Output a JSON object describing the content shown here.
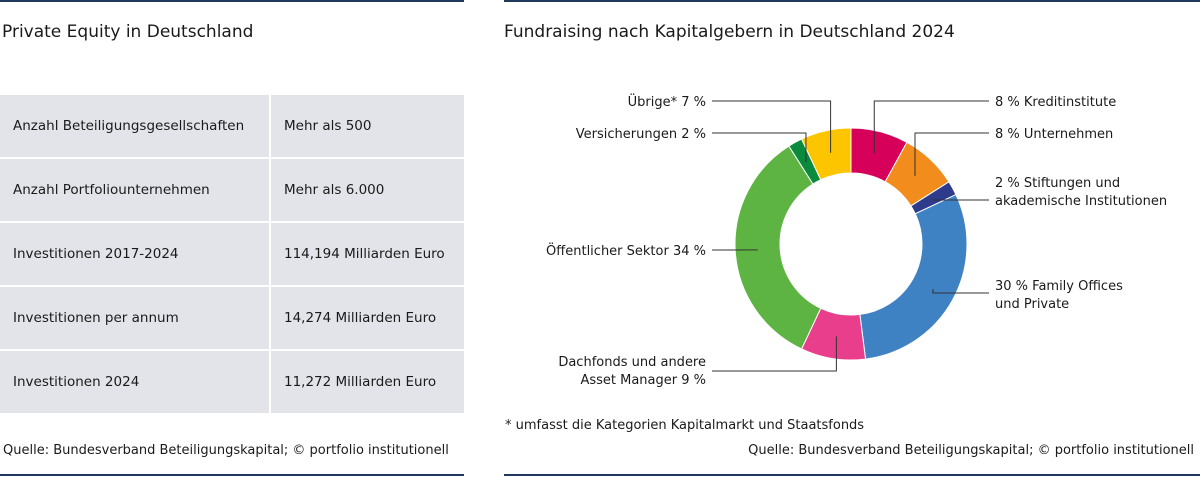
{
  "left": {
    "title": "Private Equity in Deutschland",
    "rows": [
      {
        "label": "Anzahl Beteiligungsgesellschaften",
        "value": "Mehr als 500"
      },
      {
        "label": "Anzahl Portfoliounternehmen",
        "value": "Mehr als 6.000"
      },
      {
        "label": "Investitionen 2017-2024",
        "value": "114,194 Milliarden Euro"
      },
      {
        "label": "Investitionen per annum",
        "value": "14,274 Milliarden Euro"
      },
      {
        "label": "Investitionen 2024",
        "value": "11,272 Milliarden Euro"
      }
    ],
    "source": "Quelle: Bundesverband Beteiligungskapital; © portfolio institutionell"
  },
  "right": {
    "footnote": "* umfasst die Kategorien Kapitalmarkt und Staatsfonds",
    "source": "Quelle: Bundesverband Beteiligungskapital; © portfolio institutionell"
  },
  "chart_data": {
    "type": "pie",
    "title": "Fundraising nach Kapitalgebern in Deutschland 2024",
    "unit": "%",
    "slices": [
      {
        "label_lines": [
          "8 % Kreditinstitute"
        ],
        "value": 8,
        "color": "#d6005b"
      },
      {
        "label_lines": [
          "8 % Unternehmen"
        ],
        "value": 8,
        "color": "#f28c1c"
      },
      {
        "label_lines": [
          "2 % Stiftungen und",
          "akademische Institutionen"
        ],
        "value": 2,
        "color": "#2e3a8c"
      },
      {
        "label_lines": [
          "30 % Family Offices",
          "und Private"
        ],
        "value": 30,
        "color": "#3f82c4"
      },
      {
        "label_lines": [
          "Dachfonds und andere",
          "Asset Manager 9 %"
        ],
        "value": 9,
        "color": "#e83e8c"
      },
      {
        "label_lines": [
          "Öffentlicher Sektor 34 %"
        ],
        "value": 34,
        "color": "#5db443"
      },
      {
        "label_lines": [
          "Versicherungen 2 %"
        ],
        "value": 2,
        "color": "#0a8a3c"
      },
      {
        "label_lines": [
          "Übrige* 7 %"
        ],
        "value": 7,
        "color": "#fdc400"
      }
    ]
  }
}
